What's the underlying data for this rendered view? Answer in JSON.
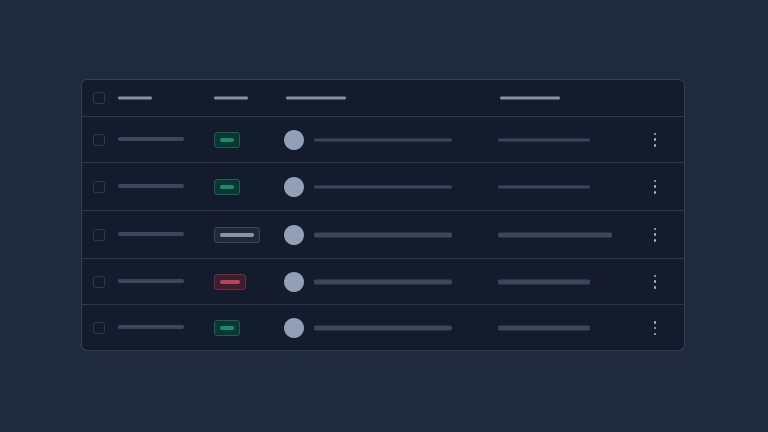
{
  "colors": {
    "background": "#1f2a3c",
    "table": "#131b2c",
    "skeleton": "#3b475b",
    "header_skeleton": "#8a919d",
    "avatar": "#919fb7"
  },
  "badge_styles": {
    "success": {
      "bg": "#0d3534",
      "border": "#13644f",
      "fill": "#139067"
    },
    "neutral": {
      "bg": "#1f2938",
      "border": "#3a4557",
      "fill": "#8c93a0"
    },
    "danger": {
      "bg": "#3a1f2d",
      "border": "#6e2d3d",
      "fill": "#b8455a"
    }
  },
  "rows": [
    {
      "status": "success",
      "badge_width": 26,
      "name_thick": false,
      "col4_wide": false
    },
    {
      "status": "success",
      "badge_width": 26,
      "name_thick": false,
      "col4_wide": false
    },
    {
      "status": "neutral",
      "badge_width": 46,
      "name_thick": true,
      "col4_wide": true
    },
    {
      "status": "danger",
      "badge_width": 32,
      "name_thick": true,
      "col4_wide": false
    },
    {
      "status": "success",
      "badge_width": 26,
      "name_thick": true,
      "col4_wide": false
    }
  ],
  "icons": {
    "row_menu": "kebab-vertical-icon",
    "select": "checkbox"
  }
}
